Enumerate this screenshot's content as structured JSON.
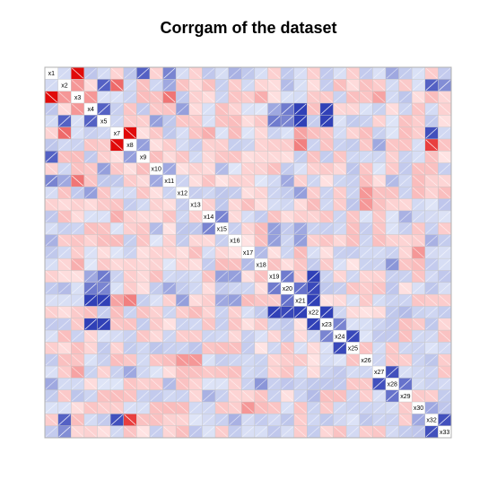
{
  "chart_data": {
    "type": "heatmap",
    "title": "Corrgam of the dataset",
    "variables": [
      "x1",
      "x2",
      "x3",
      "x4",
      "x5",
      "x7",
      "x8",
      "x9",
      "x10",
      "x11",
      "x12",
      "x13",
      "x14",
      "x15",
      "x16",
      "x17",
      "x18",
      "x19",
      "x20",
      "x21",
      "x22",
      "x23",
      "x24",
      "x25",
      "x26",
      "x27",
      "x28",
      "x29",
      "x30",
      "x32",
      "x33"
    ],
    "value_range": [
      -1,
      1
    ],
    "colors": {
      "negative": "#e00000",
      "neutral": "#ffffff",
      "positive": "#1f2fb0",
      "grid": "#c8c8c8",
      "border": "#b0b0b0"
    },
    "panel": "shade",
    "correlations": [
      {
        "i": 0,
        "j": 2,
        "r": -0.95
      },
      {
        "i": 0,
        "j": 7,
        "r": 0.7
      },
      {
        "i": 0,
        "j": 9,
        "r": 0.5
      },
      {
        "i": 1,
        "j": 2,
        "r": -0.3
      },
      {
        "i": 1,
        "j": 4,
        "r": 0.7
      },
      {
        "i": 1,
        "j": 5,
        "r": -0.5
      },
      {
        "i": 1,
        "j": 9,
        "r": 0.3
      },
      {
        "i": 1,
        "j": 29,
        "r": 0.7
      },
      {
        "i": 1,
        "j": 30,
        "r": 0.45
      },
      {
        "i": 2,
        "j": 3,
        "r": -0.3
      },
      {
        "i": 2,
        "j": 9,
        "r": -0.45
      },
      {
        "i": 3,
        "j": 4,
        "r": 0.7
      },
      {
        "i": 3,
        "j": 17,
        "r": 0.3
      },
      {
        "i": 3,
        "j": 18,
        "r": 0.55
      },
      {
        "i": 3,
        "j": 19,
        "r": 0.9
      },
      {
        "i": 3,
        "j": 21,
        "r": 0.9
      },
      {
        "i": 4,
        "j": 8,
        "r": 0.35
      },
      {
        "i": 4,
        "j": 17,
        "r": 0.55
      },
      {
        "i": 4,
        "j": 18,
        "r": 0.5
      },
      {
        "i": 4,
        "j": 19,
        "r": 0.9
      },
      {
        "i": 4,
        "j": 21,
        "r": 0.9
      },
      {
        "i": 5,
        "j": 6,
        "r": -0.95
      },
      {
        "i": 5,
        "j": 29,
        "r": 0.8
      },
      {
        "i": 5,
        "j": 19,
        "r": -0.25
      },
      {
        "i": 6,
        "j": 7,
        "r": 0.35
      },
      {
        "i": 6,
        "j": 19,
        "r": -0.4
      },
      {
        "i": 6,
        "j": 29,
        "r": -0.7
      },
      {
        "i": 8,
        "j": 9,
        "r": 0.3
      },
      {
        "i": 9,
        "j": 18,
        "r": 0.3
      },
      {
        "i": 10,
        "j": 19,
        "r": 0.35
      },
      {
        "i": 12,
        "j": 13,
        "r": 0.5
      },
      {
        "i": 13,
        "j": 17,
        "r": 0.35
      },
      {
        "i": 13,
        "j": 19,
        "r": 0.3
      },
      {
        "i": 14,
        "j": 17,
        "r": 0.35
      },
      {
        "i": 14,
        "j": 19,
        "r": 0.35
      },
      {
        "i": 15,
        "j": 16,
        "r": 0.2
      },
      {
        "i": 17,
        "j": 18,
        "r": 0.55
      },
      {
        "i": 17,
        "j": 20,
        "r": 0.9
      },
      {
        "i": 18,
        "j": 19,
        "r": 0.6
      },
      {
        "i": 18,
        "j": 20,
        "r": 0.85
      },
      {
        "i": 19,
        "j": 20,
        "r": 0.9
      },
      {
        "i": 20,
        "j": 21,
        "r": 0.9
      },
      {
        "i": 21,
        "j": 22,
        "r": 0.5
      },
      {
        "i": 22,
        "j": 23,
        "r": 0.85
      },
      {
        "i": 25,
        "j": 26,
        "r": 0.8
      },
      {
        "i": 26,
        "j": 27,
        "r": 0.6
      },
      {
        "i": 28,
        "j": 29,
        "r": 0.3
      },
      {
        "i": 29,
        "j": 30,
        "r": 0.8
      },
      {
        "i": 0,
        "j": 26,
        "r": 0.3
      },
      {
        "i": 2,
        "j": 25,
        "r": -0.25
      },
      {
        "i": 3,
        "j": 10,
        "r": 0.35
      },
      {
        "i": 5,
        "j": 12,
        "r": -0.2
      },
      {
        "i": 8,
        "j": 13,
        "r": 0.2
      },
      {
        "i": 10,
        "j": 24,
        "r": -0.3
      },
      {
        "i": 11,
        "j": 24,
        "r": -0.3
      },
      {
        "i": 6,
        "j": 25,
        "r": 0.3
      },
      {
        "i": 9,
        "j": 26,
        "r": 0.2
      },
      {
        "i": 12,
        "j": 27,
        "r": 0.25
      },
      {
        "i": 15,
        "j": 28,
        "r": -0.3
      },
      {
        "i": 16,
        "j": 26,
        "r": 0.4
      },
      {
        "i": 20,
        "j": 27,
        "r": 0.2
      },
      {
        "i": 14,
        "j": 29,
        "r": 0.25
      },
      {
        "i": 0,
        "j": 14,
        "r": 0.25
      },
      {
        "i": 2,
        "j": 16,
        "r": -0.2
      },
      {
        "i": 1,
        "j": 18,
        "r": 0.2
      }
    ]
  }
}
